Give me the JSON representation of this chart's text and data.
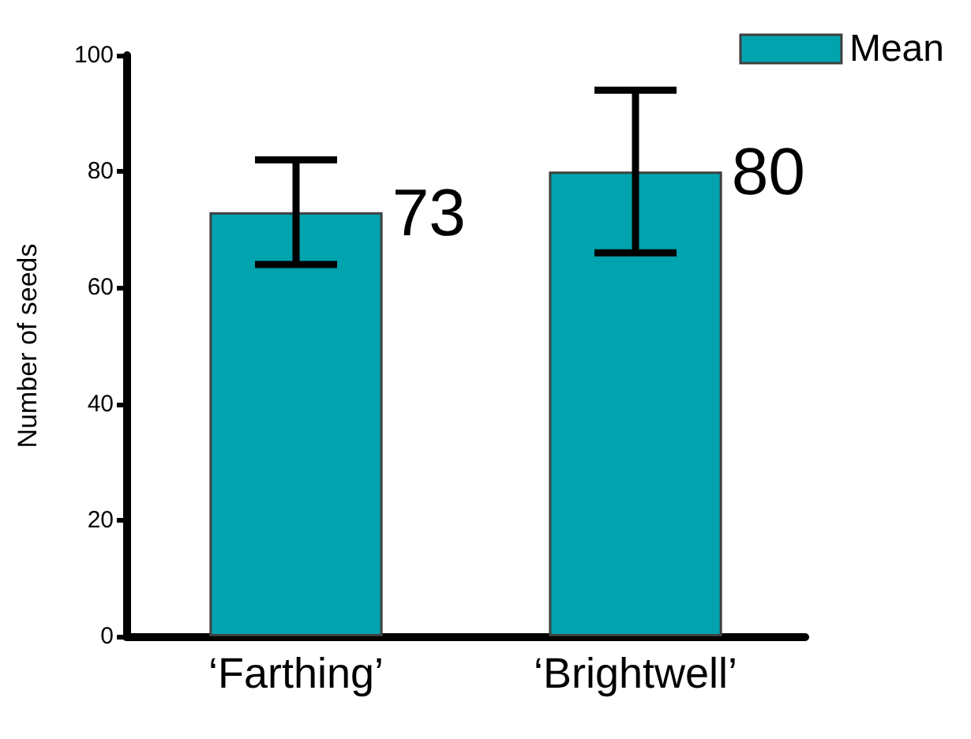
{
  "chart_data": {
    "type": "bar",
    "ylabel": "Number of seeds",
    "categories": [
      "‘Farthing’",
      "‘Brightwell’"
    ],
    "series": [
      {
        "name": "Mean",
        "color": "#00a3ae",
        "values": [
          73,
          80
        ],
        "errors": [
          9,
          14
        ]
      }
    ],
    "ylim": [
      0,
      100
    ],
    "yticks": [
      0,
      20,
      40,
      60,
      80,
      100
    ],
    "grid": false,
    "legend": "top right",
    "data_labels": true
  }
}
